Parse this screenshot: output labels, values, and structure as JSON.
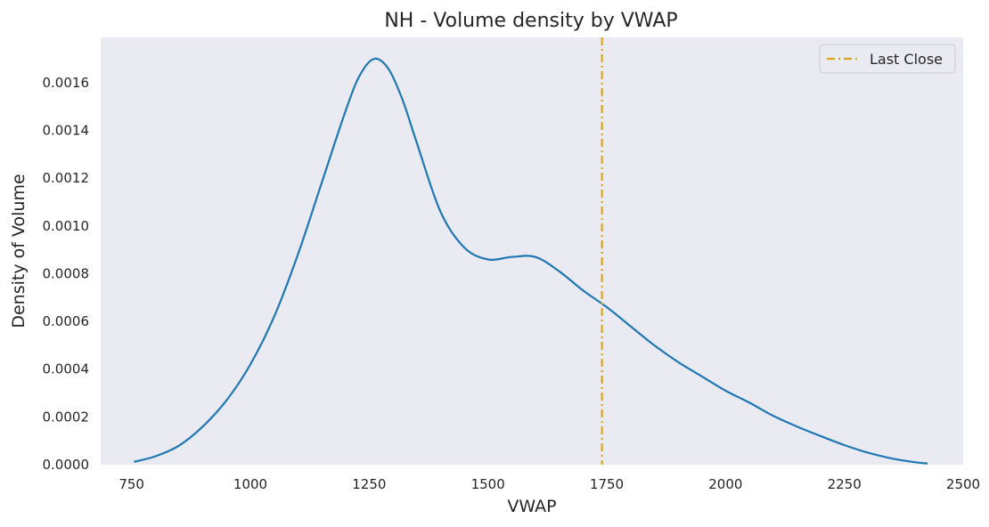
{
  "chart_data": {
    "type": "line",
    "title": "NH - Volume density by VWAP",
    "xlabel": "VWAP",
    "ylabel": "Density of Volume",
    "xlim": [
      685,
      2500
    ],
    "ylim": [
      0,
      0.00179
    ],
    "xticks": [
      750,
      1000,
      1250,
      1500,
      1750,
      2000,
      2250,
      2500
    ],
    "xtick_labels": [
      "750",
      "1000",
      "1250",
      "1500",
      "1750",
      "2000",
      "2250",
      "2500"
    ],
    "yticks": [
      0,
      0.0002,
      0.0004,
      0.0006,
      0.0008,
      0.001,
      0.0012,
      0.0014,
      0.0016
    ],
    "ytick_labels": [
      "0.0000",
      "0.0002",
      "0.0004",
      "0.0006",
      "0.0008",
      "0.0010",
      "0.0012",
      "0.0014",
      "0.0016"
    ],
    "grid": false,
    "legend_position": "top-right",
    "series": [
      {
        "color": "#1f77b4",
        "x": [
          755,
          800,
          850,
          900,
          950,
          1000,
          1050,
          1100,
          1150,
          1200,
          1230,
          1260,
          1290,
          1320,
          1350,
          1400,
          1450,
          1500,
          1550,
          1600,
          1650,
          1700,
          1750,
          1800,
          1850,
          1900,
          1950,
          2000,
          2050,
          2100,
          2150,
          2200,
          2250,
          2300,
          2350,
          2400,
          2425
        ],
        "y": [
          1.2e-05,
          3.5e-05,
          8e-05,
          0.00016,
          0.00027,
          0.00042,
          0.00062,
          0.00088,
          0.00118,
          0.00148,
          0.00163,
          0.0017,
          0.00166,
          0.00153,
          0.00135,
          0.00106,
          0.00091,
          0.00086,
          0.00087,
          0.00087,
          0.00081,
          0.00073,
          0.00066,
          0.00058,
          0.0005,
          0.00043,
          0.00037,
          0.00031,
          0.00026,
          0.000205,
          0.00016,
          0.00012,
          8.2e-05,
          5e-05,
          2.6e-05,
          1e-05,
          5e-06
        ]
      }
    ],
    "annotations": [
      {
        "type": "vline",
        "x": 1740,
        "label": "Last Close",
        "color": "#DAA520",
        "style": "dash-dot"
      }
    ]
  }
}
